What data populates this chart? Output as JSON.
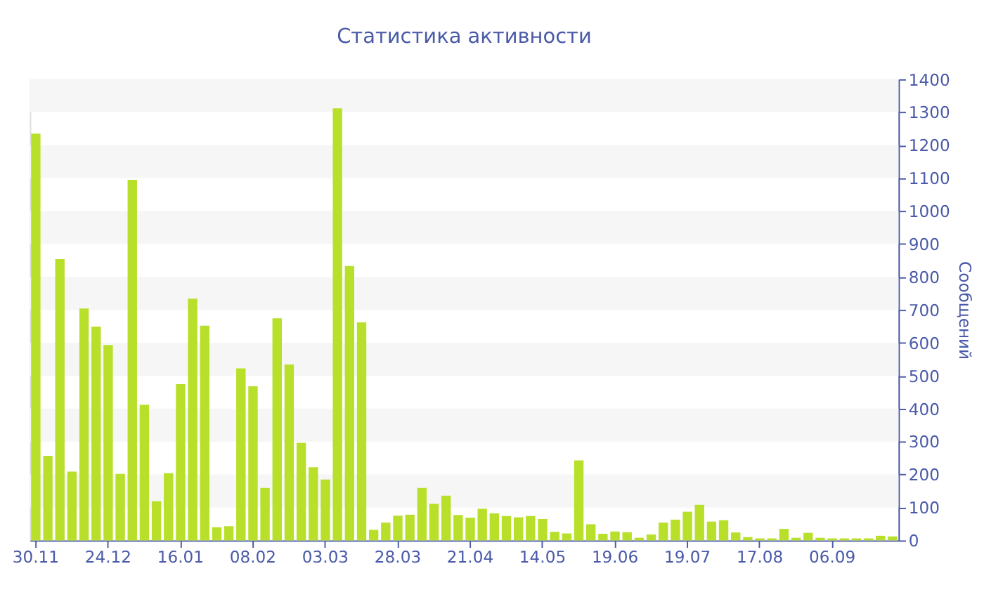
{
  "chart_data": {
    "type": "bar",
    "title": "Статистика активности",
    "ylabel": "Сообщений",
    "categories": [
      "30.11",
      null,
      null,
      null,
      null,
      null,
      "24.12",
      null,
      null,
      null,
      null,
      null,
      "16.01",
      null,
      null,
      null,
      null,
      null,
      "08.02",
      null,
      null,
      null,
      null,
      null,
      "03.03",
      null,
      null,
      null,
      null,
      null,
      "28.03",
      null,
      null,
      null,
      null,
      null,
      "21.04",
      null,
      null,
      null,
      null,
      null,
      "14.05",
      null,
      null,
      null,
      null,
      null,
      "19.06",
      null,
      null,
      null,
      null,
      null,
      "19.07",
      null,
      null,
      null,
      null,
      null,
      "17.08",
      null,
      null,
      null,
      null,
      null,
      "06.09",
      null,
      null,
      null,
      null,
      null
    ],
    "values": [
      1235,
      257,
      854,
      209,
      704,
      649,
      593,
      202,
      1095,
      412,
      119,
      204,
      474,
      734,
      652,
      40,
      43,
      522,
      468,
      159,
      674,
      534,
      296,
      222,
      185,
      1312,
      833,
      662,
      32,
      54,
      75,
      78,
      159,
      111,
      136,
      77,
      69,
      96,
      82,
      74,
      70,
      74,
      65,
      26,
      21,
      243,
      49,
      20,
      27,
      25,
      8,
      18,
      54,
      63,
      87,
      108,
      57,
      61,
      24,
      10,
      6,
      6,
      35,
      8,
      23,
      8,
      6,
      6,
      6,
      6,
      14,
      12
    ],
    "color": "#b8e02a",
    "ylim": [
      0,
      1400
    ],
    "yticks": [
      0,
      100,
      200,
      300,
      400,
      500,
      600,
      700,
      800,
      900,
      1000,
      1100,
      1200,
      1300,
      1400
    ],
    "grid": false
  }
}
